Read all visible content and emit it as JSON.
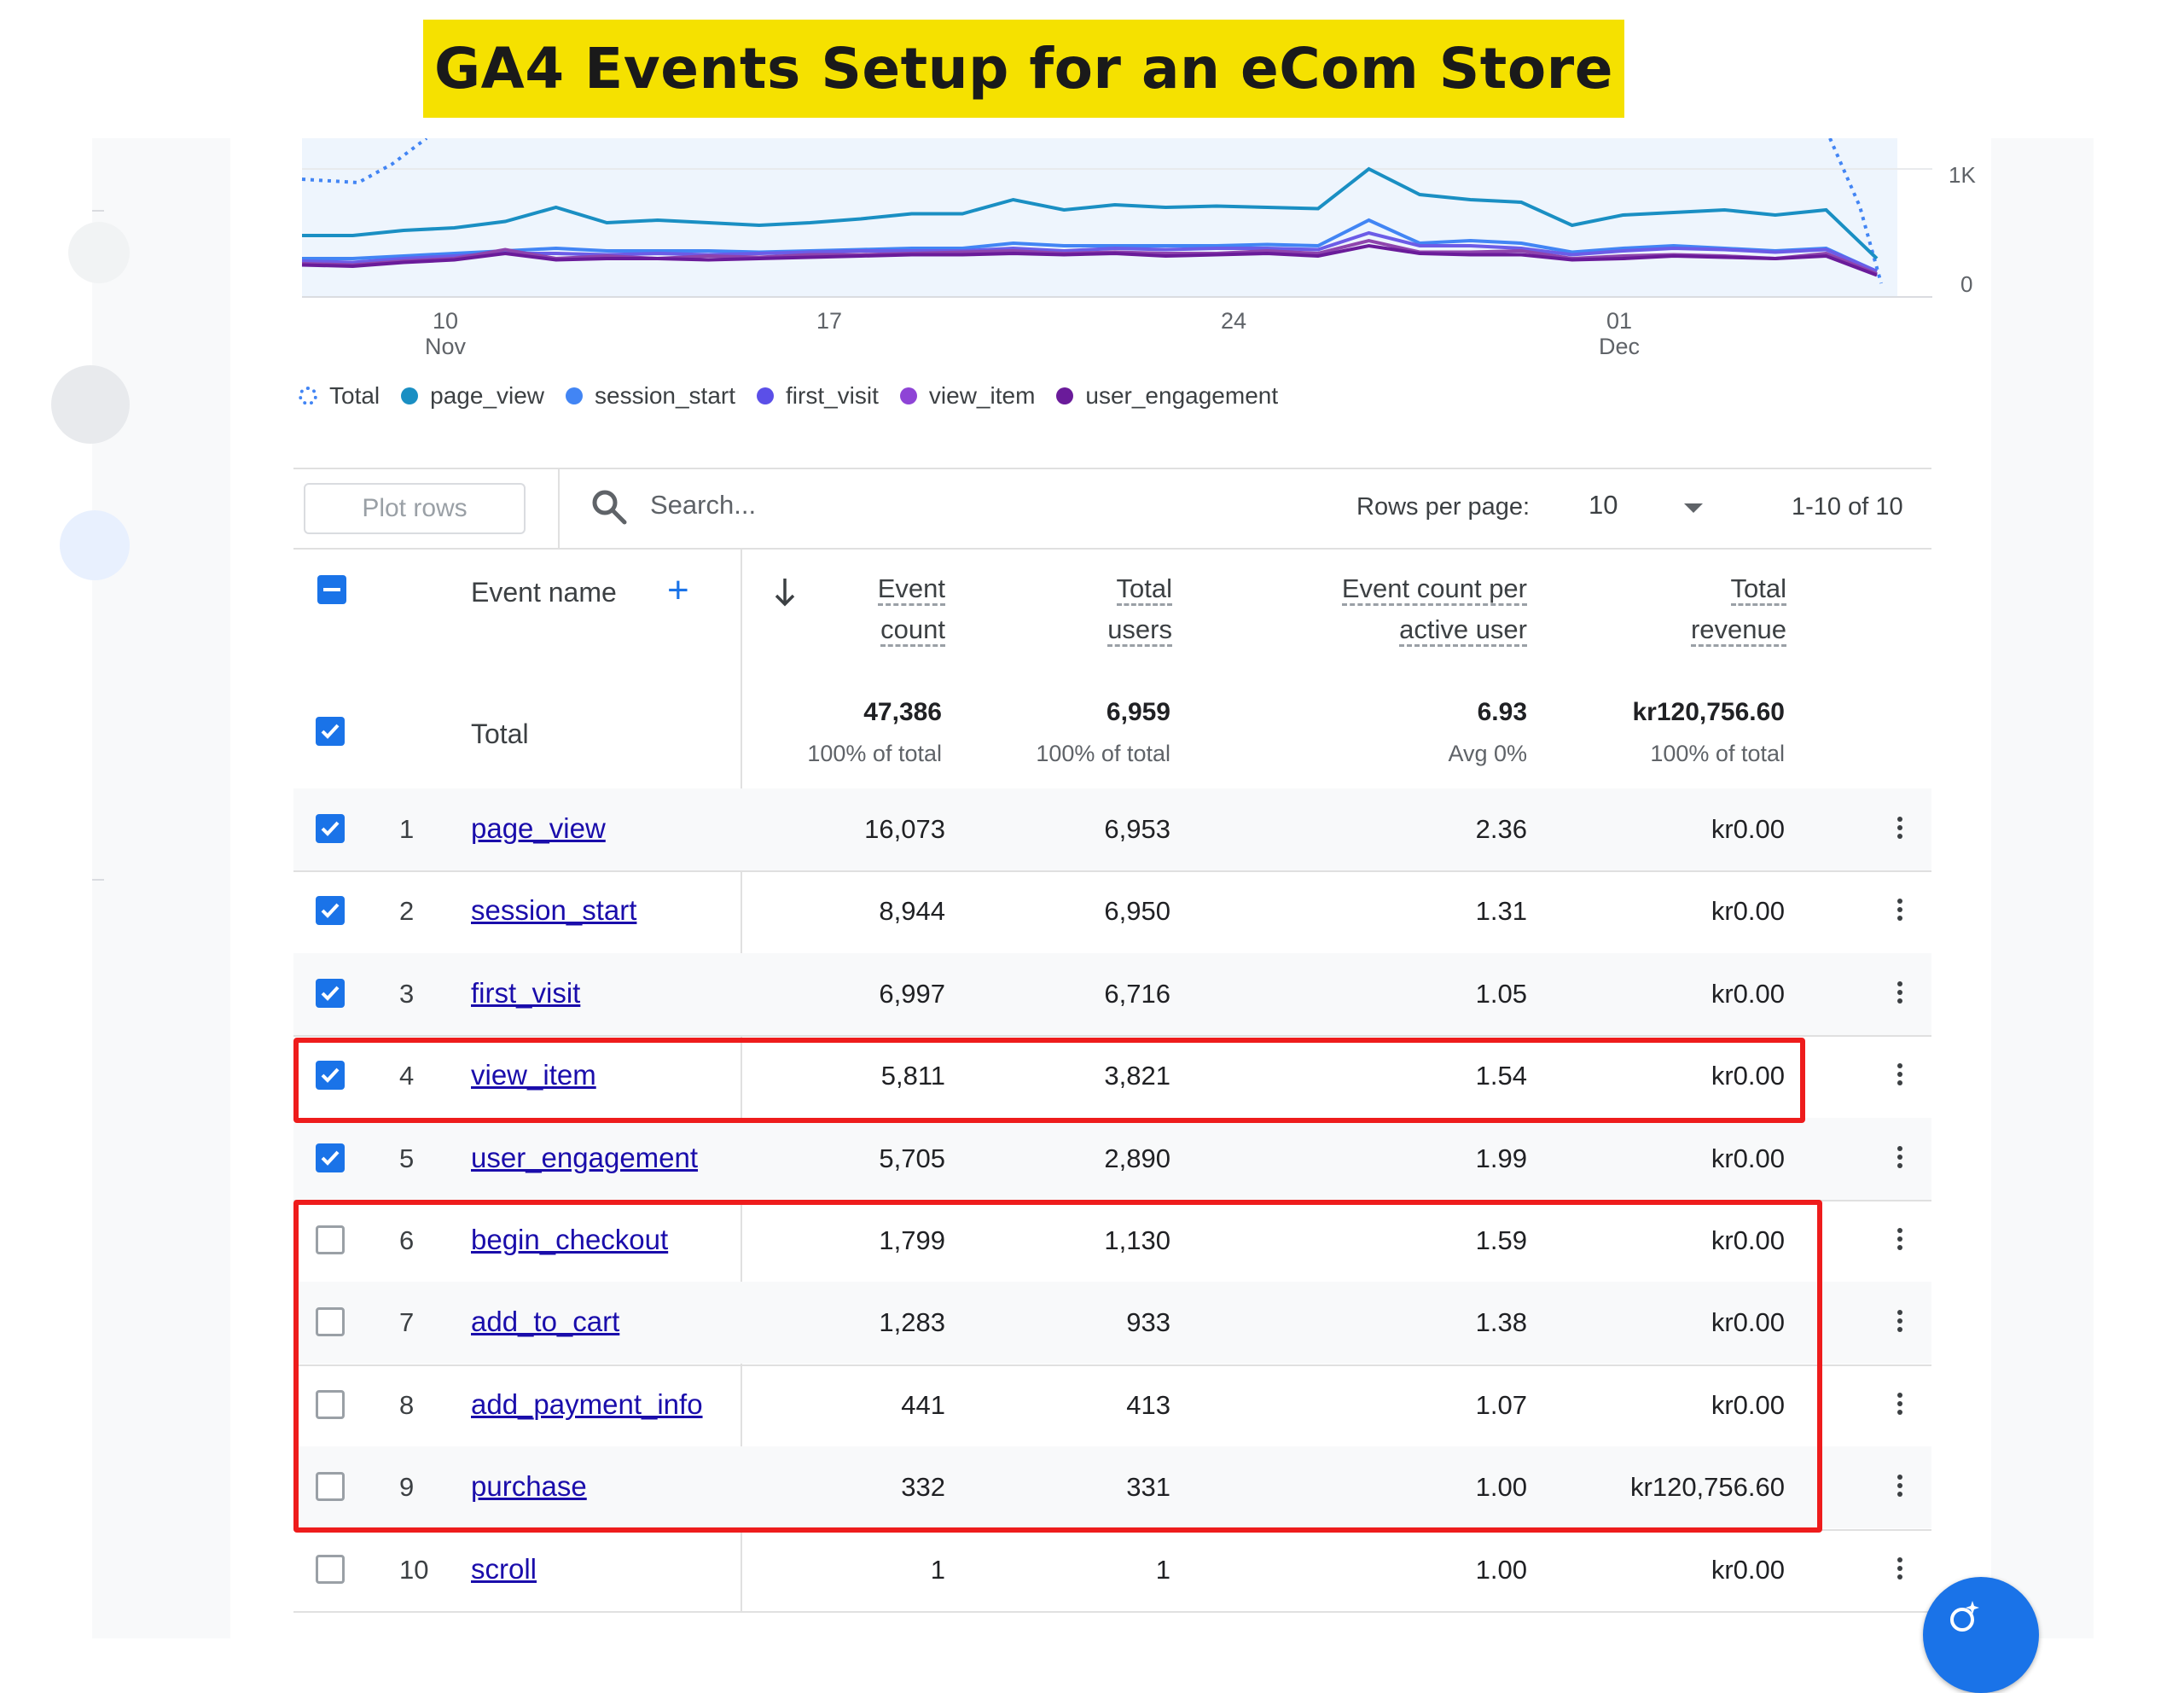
{
  "banner": {
    "title": "GA4 Events Setup for an eCom Store"
  },
  "chart_data": {
    "type": "line",
    "x_ticks": [
      "10 Nov",
      "17",
      "24",
      "01 Dec"
    ],
    "y_ticks": [
      "1K",
      "0"
    ],
    "legend": [
      "Total",
      "page_view",
      "session_start",
      "first_visit",
      "view_item",
      "user_engagement"
    ],
    "series": [
      {
        "name": "page_view",
        "color": "#1a8fc3",
        "values": [
          480,
          480,
          520,
          540,
          590,
          700,
          580,
          600,
          580,
          560,
          580,
          610,
          650,
          650,
          760,
          680,
          720,
          700,
          710,
          700,
          690,
          1000,
          800,
          760,
          740,
          560,
          640,
          660,
          680,
          640,
          680,
          300
        ]
      },
      {
        "name": "session_start",
        "color": "#4285f4",
        "values": [
          300,
          300,
          320,
          340,
          360,
          380,
          360,
          360,
          360,
          350,
          360,
          370,
          380,
          380,
          420,
          400,
          400,
          400,
          400,
          410,
          400,
          600,
          420,
          440,
          420,
          350,
          380,
          400,
          380,
          360,
          380,
          200
        ]
      },
      {
        "name": "first_visit",
        "color": "#6c5ce7",
        "values": [
          280,
          270,
          300,
          320,
          340,
          340,
          330,
          340,
          330,
          340,
          350,
          360,
          360,
          360,
          380,
          360,
          380,
          370,
          380,
          380,
          370,
          500,
          400,
          400,
          380,
          330,
          360,
          380,
          370,
          350,
          370,
          200
        ]
      },
      {
        "name": "view_item",
        "color": "#8e44ad",
        "values": [
          260,
          250,
          280,
          300,
          370,
          300,
          320,
          300,
          320,
          310,
          330,
          330,
          340,
          350,
          360,
          340,
          350,
          340,
          340,
          360,
          340,
          440,
          350,
          350,
          360,
          300,
          320,
          330,
          320,
          300,
          340,
          180
        ]
      },
      {
        "name": "user_engagement",
        "color": "#6a1b9a",
        "values": [
          250,
          240,
          270,
          290,
          340,
          290,
          300,
          300,
          290,
          300,
          310,
          320,
          330,
          330,
          340,
          330,
          340,
          320,
          330,
          340,
          320,
          400,
          340,
          330,
          330,
          290,
          300,
          320,
          310,
          300,
          320,
          170
        ]
      }
    ]
  },
  "toolbar": {
    "plot_rows": "Plot rows",
    "search_placeholder": "Search...",
    "rows_per_page_label": "Rows per page:",
    "rows_per_page_value": "10",
    "page_range": "1-10 of 10"
  },
  "table": {
    "headers": {
      "event_name": "Event name",
      "event_count_1": "Event",
      "event_count_2": "count",
      "total_users_1": "Total",
      "total_users_2": "users",
      "ecpau_1": "Event count per",
      "ecpau_2": "active user",
      "revenue_1": "Total",
      "revenue_2": "revenue"
    },
    "total": {
      "label": "Total",
      "event_count": "47,386",
      "event_count_sub": "100% of total",
      "total_users": "6,959",
      "total_users_sub": "100% of total",
      "ecpau": "6.93",
      "ecpau_sub": "Avg 0%",
      "revenue": "kr120,756.60",
      "revenue_sub": "100% of total"
    },
    "rows": [
      {
        "num": "1",
        "name": "page_view",
        "event_count": "16,073",
        "total_users": "6,953",
        "ecpau": "2.36",
        "revenue": "kr0.00",
        "checked": true
      },
      {
        "num": "2",
        "name": "session_start",
        "event_count": "8,944",
        "total_users": "6,950",
        "ecpau": "1.31",
        "revenue": "kr0.00",
        "checked": true
      },
      {
        "num": "3",
        "name": "first_visit",
        "event_count": "6,997",
        "total_users": "6,716",
        "ecpau": "1.05",
        "revenue": "kr0.00",
        "checked": true
      },
      {
        "num": "4",
        "name": "view_item",
        "event_count": "5,811",
        "total_users": "3,821",
        "ecpau": "1.54",
        "revenue": "kr0.00",
        "checked": true
      },
      {
        "num": "5",
        "name": "user_engagement",
        "event_count": "5,705",
        "total_users": "2,890",
        "ecpau": "1.99",
        "revenue": "kr0.00",
        "checked": true
      },
      {
        "num": "6",
        "name": "begin_checkout",
        "event_count": "1,799",
        "total_users": "1,130",
        "ecpau": "1.59",
        "revenue": "kr0.00",
        "checked": false
      },
      {
        "num": "7",
        "name": "add_to_cart",
        "event_count": "1,283",
        "total_users": "933",
        "ecpau": "1.38",
        "revenue": "kr0.00",
        "checked": false
      },
      {
        "num": "8",
        "name": "add_payment_info",
        "event_count": "441",
        "total_users": "413",
        "ecpau": "1.07",
        "revenue": "kr0.00",
        "checked": false
      },
      {
        "num": "9",
        "name": "purchase",
        "event_count": "332",
        "total_users": "331",
        "ecpau": "1.00",
        "revenue": "kr120,756.60",
        "checked": false
      },
      {
        "num": "10",
        "name": "scroll",
        "event_count": "1",
        "total_users": "1",
        "ecpau": "1.00",
        "revenue": "kr0.00",
        "checked": false
      }
    ]
  }
}
